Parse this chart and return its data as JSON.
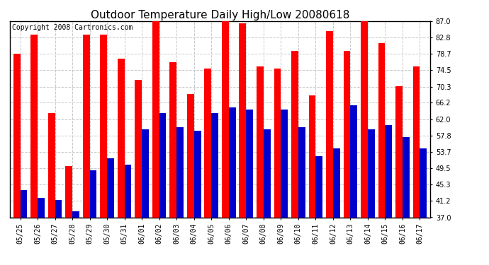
{
  "title": "Outdoor Temperature Daily High/Low 20080618",
  "copyright": "Copyright 2008 Cartronics.com",
  "dates": [
    "05/25",
    "05/26",
    "05/27",
    "05/28",
    "05/29",
    "05/30",
    "05/31",
    "06/01",
    "06/02",
    "06/03",
    "06/04",
    "06/05",
    "06/06",
    "06/07",
    "06/08",
    "06/09",
    "06/10",
    "06/11",
    "06/12",
    "06/13",
    "06/14",
    "06/15",
    "06/16",
    "06/17"
  ],
  "highs": [
    78.7,
    83.5,
    63.5,
    50.0,
    83.5,
    83.5,
    77.5,
    72.0,
    87.0,
    76.5,
    68.5,
    75.0,
    87.0,
    86.5,
    75.5,
    75.0,
    79.5,
    68.0,
    84.5,
    79.5,
    87.0,
    81.5,
    70.5,
    75.5
  ],
  "lows": [
    44.0,
    42.0,
    41.5,
    38.5,
    49.0,
    52.0,
    50.5,
    59.5,
    63.5,
    60.0,
    59.0,
    63.5,
    65.0,
    64.5,
    59.5,
    64.5,
    60.0,
    52.5,
    54.5,
    65.5,
    59.5,
    60.5,
    57.5,
    54.5
  ],
  "ylim": [
    37.0,
    87.0
  ],
  "yticks": [
    37.0,
    41.2,
    45.3,
    49.5,
    53.7,
    57.8,
    62.0,
    66.2,
    70.3,
    74.5,
    78.7,
    82.8,
    87.0
  ],
  "high_color": "#ff0000",
  "low_color": "#0000cc",
  "bg_color": "#ffffff",
  "grid_color": "#c8c8c8",
  "bar_width": 0.4,
  "title_fontsize": 11,
  "tick_fontsize": 7,
  "copyright_fontsize": 7
}
